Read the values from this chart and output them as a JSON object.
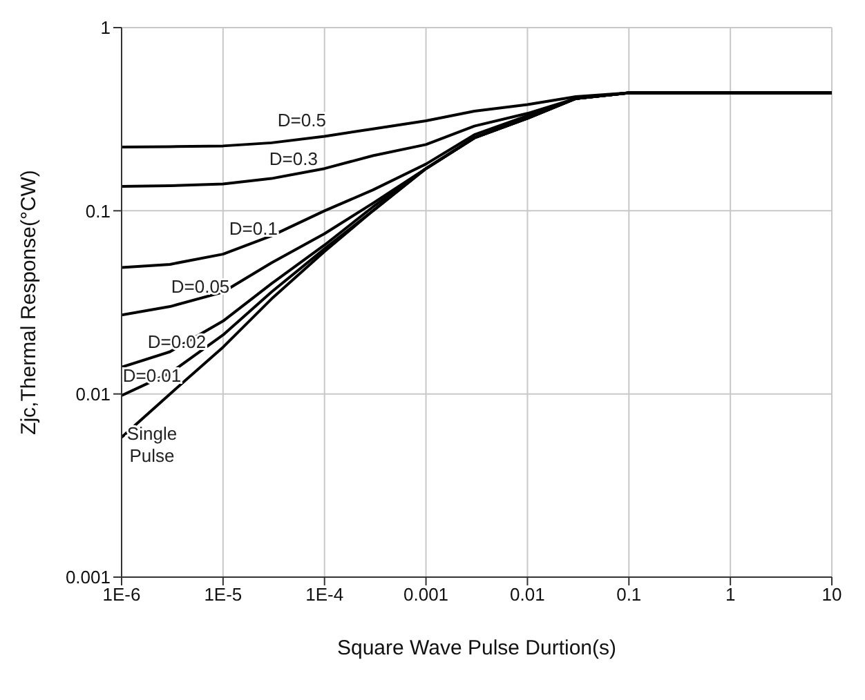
{
  "chart_data": {
    "type": "line",
    "xlabel": "Square Wave Pulse Durtion(s)",
    "ylabel": "Zjc,Thermal Response(°CW)",
    "log": "xy",
    "grid": true,
    "legend": false,
    "marker": "none",
    "line_style": "solid",
    "xlim": [
      1e-06,
      10
    ],
    "ylim": [
      0.001,
      1
    ],
    "xticks": [
      {
        "value": 1e-06,
        "label": "1E-6"
      },
      {
        "value": 1e-05,
        "label": "1E-5"
      },
      {
        "value": 0.0001,
        "label": "1E-4"
      },
      0.001,
      0.01,
      0.1,
      1,
      10
    ],
    "yticks": [
      0.001,
      0.01,
      0.1,
      1
    ],
    "x": [
      1e-06,
      3e-06,
      1e-05,
      3e-05,
      0.0001,
      0.0003,
      0.001,
      0.003,
      0.01,
      0.03,
      0.1,
      1,
      10
    ],
    "series": [
      {
        "name": "D=0.5",
        "color": "#000000",
        "values": [
          0.223,
          0.224,
          0.226,
          0.235,
          0.255,
          0.28,
          0.31,
          0.35,
          0.38,
          0.42,
          0.44,
          0.44,
          0.44
        ]
      },
      {
        "name": "D=0.3",
        "color": "#000000",
        "values": [
          0.136,
          0.137,
          0.14,
          0.15,
          0.17,
          0.2,
          0.23,
          0.29,
          0.34,
          0.41,
          0.44,
          0.44,
          0.44
        ]
      },
      {
        "name": "D=0.1",
        "color": "#000000",
        "values": [
          0.049,
          0.051,
          0.058,
          0.073,
          0.1,
          0.13,
          0.18,
          0.26,
          0.33,
          0.41,
          0.44,
          0.44,
          0.44
        ]
      },
      {
        "name": "D=0.05",
        "color": "#000000",
        "values": [
          0.027,
          0.03,
          0.036,
          0.052,
          0.075,
          0.11,
          0.17,
          0.25,
          0.32,
          0.41,
          0.44,
          0.44,
          0.44
        ]
      },
      {
        "name": "D=0.02",
        "color": "#000000",
        "values": [
          0.014,
          0.017,
          0.025,
          0.04,
          0.065,
          0.105,
          0.17,
          0.25,
          0.32,
          0.41,
          0.44,
          0.44,
          0.44
        ]
      },
      {
        "name": "D=0.01",
        "color": "#000000",
        "values": [
          0.0098,
          0.013,
          0.021,
          0.036,
          0.062,
          0.1,
          0.17,
          0.25,
          0.32,
          0.41,
          0.44,
          0.44,
          0.44
        ]
      },
      {
        "name": "Single Pulse",
        "color": "#000000",
        "values": [
          0.0058,
          0.01,
          0.018,
          0.033,
          0.06,
          0.1,
          0.17,
          0.25,
          0.32,
          0.41,
          0.44,
          0.44,
          0.44
        ]
      }
    ]
  }
}
